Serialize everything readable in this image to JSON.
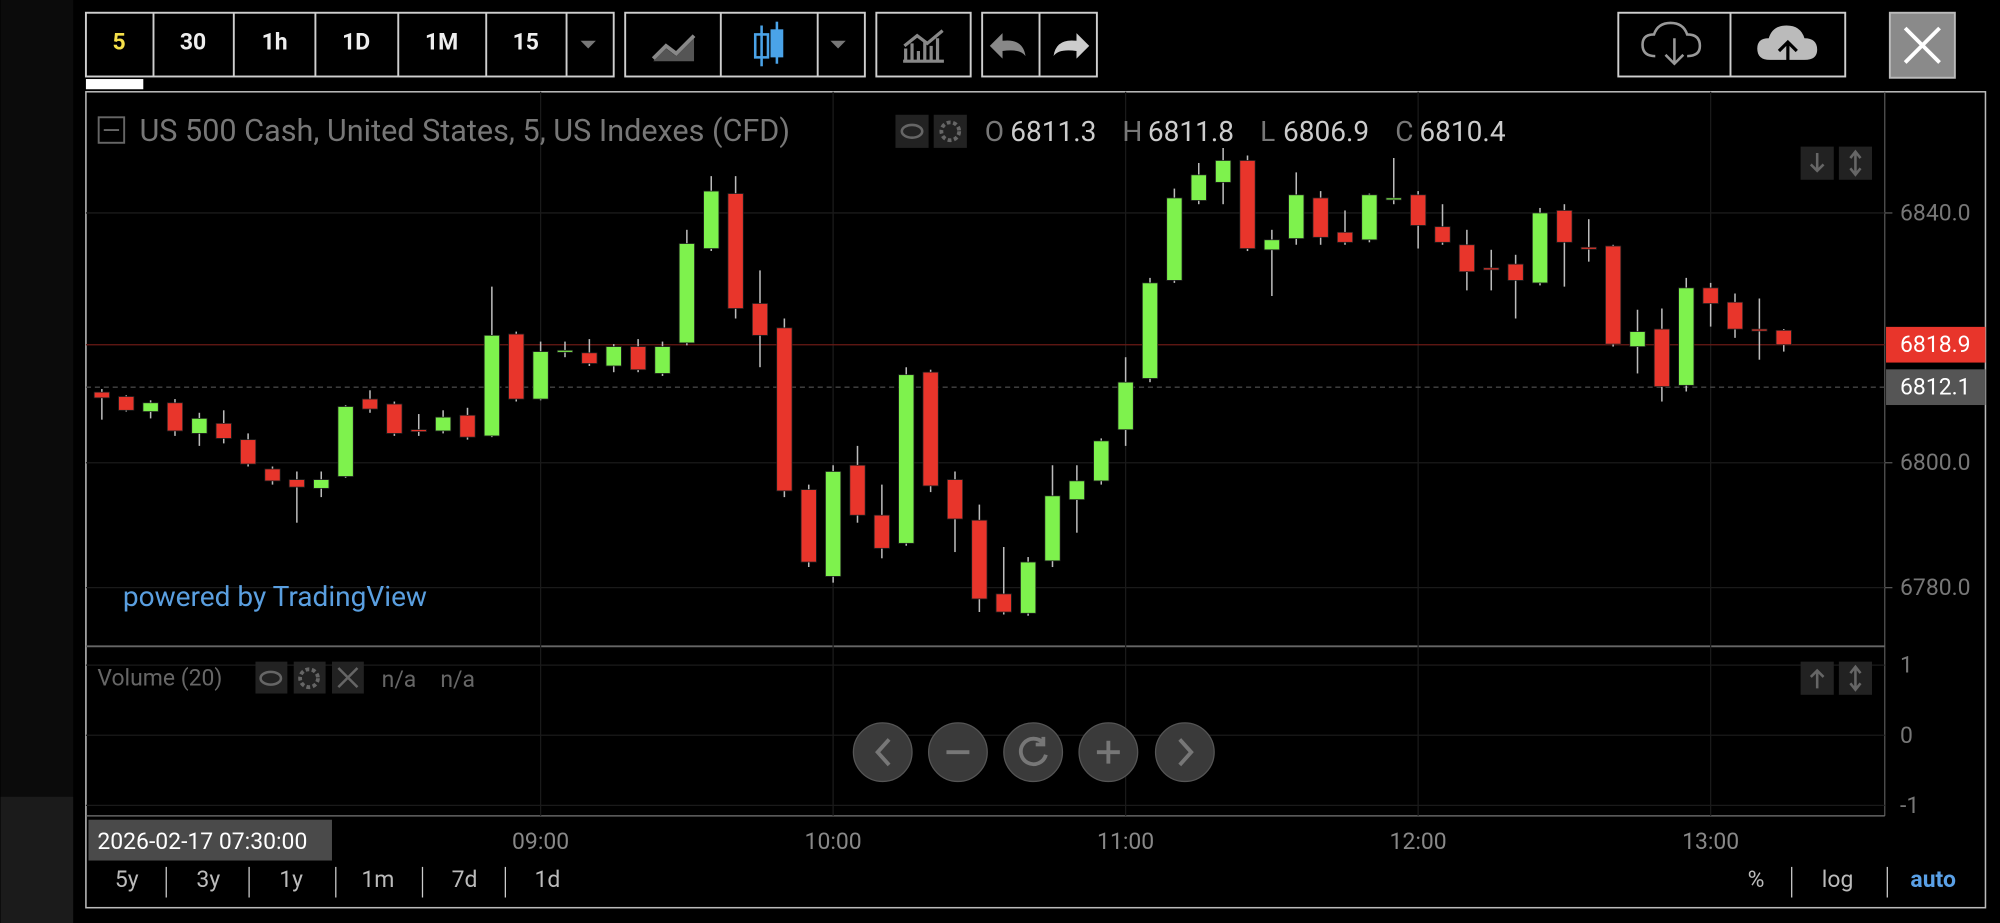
{
  "toolbar": {
    "intervals": [
      "5",
      "30",
      "1h",
      "1D",
      "1M",
      "15"
    ]
  },
  "chart_data": {
    "type": "candlestick",
    "title": "US 500 Cash, United States, 5, US Indexes (CFD)",
    "legend_labels": [
      "O",
      "H",
      "L",
      "C"
    ],
    "categories": [
      null,
      null,
      null,
      null,
      null,
      null,
      null,
      null,
      null,
      null,
      null,
      null,
      null,
      null,
      null,
      null,
      null,
      null,
      "09:00",
      null,
      null,
      null,
      null,
      null,
      null,
      null,
      null,
      null,
      null,
      null,
      "10:00",
      null,
      null,
      null,
      null,
      null,
      null,
      null,
      null,
      null,
      null,
      null,
      "11:00",
      null,
      null,
      null,
      null,
      null,
      null,
      null,
      null,
      null,
      null,
      null,
      "12:00",
      null,
      null,
      null,
      null,
      null,
      null,
      null,
      null,
      null,
      null,
      null,
      "13:00",
      null,
      null,
      null
    ],
    "open": [
      6811.3,
      6810.6,
      6808.2,
      6809.6,
      6804.7,
      6806.3,
      6803.7,
      6799.0,
      6797.3,
      6795.9,
      6797.8,
      6810.2,
      6809.4,
      6805.3,
      6805.1,
      6807.6,
      6804.3,
      6820.6,
      6810.2,
      6817.8,
      6817.6,
      6815.5,
      6818.6,
      6814.3,
      6819.2,
      6834.3,
      6843.1,
      6825.5,
      6821.6,
      6795.7,
      6781.8,
      6799.6,
      6791.6,
      6787.1,
      6814.5,
      6797.3,
      6790.8,
      6779.0,
      6775.9,
      6784.3,
      6794.1,
      6797.1,
      6805.3,
      6813.5,
      6829.2,
      6842.0,
      6844.9,
      6848.4,
      6834.1,
      6835.9,
      6842.4,
      6836.9,
      6835.7,
      6842.2,
      6842.9,
      6837.8,
      6834.9,
      6831.2,
      6831.8,
      6828.8,
      6840.4,
      6834.5,
      6834.7,
      6818.6,
      6821.4,
      6812.4,
      6828.0,
      6825.7,
      6821.4,
      6821.2
    ],
    "high": [
      6811.8,
      6810.8,
      6810.0,
      6810.2,
      6808.0,
      6808.4,
      6804.7,
      6799.4,
      6798.6,
      6798.6,
      6809.2,
      6811.6,
      6809.8,
      6807.8,
      6808.4,
      6808.8,
      6828.2,
      6821.0,
      6819.4,
      6819.4,
      6819.8,
      6819.0,
      6819.8,
      6819.4,
      6837.3,
      6845.9,
      6845.9,
      6830.8,
      6823.1,
      6796.5,
      6799.6,
      6802.7,
      6796.5,
      6815.3,
      6814.9,
      6798.6,
      6793.3,
      6786.5,
      6784.9,
      6799.6,
      6799.6,
      6803.9,
      6816.9,
      6829.6,
      6843.9,
      6848.0,
      6850.4,
      6849.2,
      6837.3,
      6846.5,
      6843.5,
      6840.4,
      6843.1,
      6848.8,
      6843.5,
      6841.4,
      6837.3,
      6834.1,
      6833.3,
      6840.8,
      6841.4,
      6839.0,
      6834.9,
      6824.5,
      6824.7,
      6829.6,
      6828.8,
      6827.1,
      6826.3,
      6821.4
    ],
    "low": [
      6806.9,
      6808.2,
      6807.1,
      6804.3,
      6802.7,
      6803.1,
      6799.4,
      6796.5,
      6790.4,
      6794.5,
      6797.6,
      6808.0,
      6804.3,
      6804.3,
      6804.7,
      6803.7,
      6804.1,
      6809.8,
      6810.0,
      6816.9,
      6815.5,
      6814.5,
      6814.5,
      6813.9,
      6818.8,
      6833.9,
      6823.1,
      6815.3,
      6794.5,
      6783.3,
      6780.8,
      6790.4,
      6784.7,
      6786.7,
      6795.3,
      6785.7,
      6776.1,
      6775.7,
      6775.5,
      6783.3,
      6788.8,
      6796.5,
      6802.7,
      6812.9,
      6828.8,
      6841.4,
      6841.4,
      6833.9,
      6826.7,
      6834.9,
      6834.9,
      6834.9,
      6835.3,
      6841.4,
      6834.3,
      6834.9,
      6827.6,
      6827.6,
      6823.1,
      6828.4,
      6828.2,
      6832.2,
      6818.6,
      6814.3,
      6809.8,
      6811.4,
      6821.8,
      6820.0,
      6816.5,
      6817.8
    ],
    "close": [
      6810.4,
      6808.4,
      6809.6,
      6805.1,
      6807.1,
      6803.9,
      6799.8,
      6797.1,
      6796.1,
      6797.3,
      6809.0,
      6808.6,
      6804.7,
      6805.1,
      6807.3,
      6804.1,
      6820.4,
      6810.2,
      6817.8,
      6818.0,
      6815.9,
      6818.6,
      6814.9,
      6818.6,
      6835.1,
      6843.5,
      6824.7,
      6820.4,
      6795.5,
      6784.1,
      6798.6,
      6791.6,
      6786.3,
      6814.1,
      6796.3,
      6791.0,
      6778.2,
      6776.1,
      6784.1,
      6794.7,
      6797.1,
      6803.5,
      6812.9,
      6828.8,
      6842.4,
      6846.1,
      6848.4,
      6834.3,
      6835.7,
      6842.9,
      6836.1,
      6835.3,
      6842.9,
      6842.4,
      6838.0,
      6835.3,
      6830.6,
      6831.0,
      6829.2,
      6840.0,
      6835.3,
      6834.3,
      6819.0,
      6821.0,
      6812.2,
      6828.0,
      6825.5,
      6821.4,
      6821.2,
      6818.9
    ],
    "up_color": "#7ef24d",
    "down_color": "#e8352b",
    "ylim": [
      6770.6,
      6859.4
    ],
    "yticks": [
      {
        "value": 6780,
        "label": "6780.0"
      },
      {
        "value": 6800,
        "label": "6800.0"
      },
      {
        "value": 6840,
        "label": "6840.0"
      }
    ],
    "grid": true,
    "price_labels": [
      {
        "value": 6818.9,
        "label": "6818.9",
        "color": "#e8352b"
      },
      {
        "value": 6812.1,
        "label": "6812.1",
        "color": "#555555"
      }
    ],
    "crosshair_date": "2026-02-17 07:30:00",
    "watermark": "powered by TradingView"
  },
  "volume_pane": {
    "title": "Volume (20)",
    "readouts": [
      "n/a",
      "n/a"
    ],
    "ylim": [
      -1.15,
      1.25
    ],
    "yticks": [
      1,
      0,
      -1
    ]
  },
  "range_buttons": [
    "5y",
    "3y",
    "1y",
    "1m",
    "7d",
    "1d"
  ],
  "scale_buttons": [
    "%",
    "log",
    "auto"
  ]
}
